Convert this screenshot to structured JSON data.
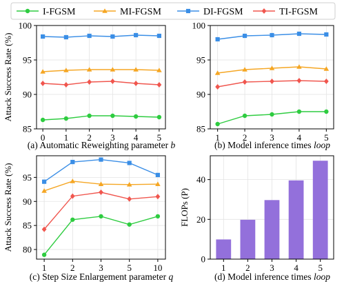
{
  "legend": {
    "placement": "top-center",
    "entries": [
      {
        "label": "I-FGSM",
        "color": "#2ecc40",
        "marker": "circle"
      },
      {
        "label": "MI-FGSM",
        "color": "#f5a623",
        "marker": "triangle"
      },
      {
        "label": "DI-FGSM",
        "color": "#3a8ee6",
        "marker": "square"
      },
      {
        "label": "TI-FGSM",
        "color": "#f0564e",
        "marker": "diamond"
      }
    ]
  },
  "chart_data": [
    {
      "type": "line",
      "caption_text": "(a) Automatic Reweighting parameter ",
      "caption_var": "b",
      "ylabel": "Attack Success Rate (%)",
      "categories": [
        "0",
        "1",
        "2",
        "3",
        "4",
        "5"
      ],
      "ylim": [
        85,
        100
      ],
      "yticks": [
        "85",
        "90",
        "95",
        "100"
      ],
      "grid": true,
      "series": [
        {
          "name": "I-FGSM",
          "values": [
            86.3,
            86.5,
            86.9,
            86.9,
            86.8,
            86.7
          ]
        },
        {
          "name": "MI-FGSM",
          "values": [
            93.3,
            93.5,
            93.6,
            93.6,
            93.6,
            93.5
          ]
        },
        {
          "name": "DI-FGSM",
          "values": [
            98.4,
            98.3,
            98.5,
            98.4,
            98.6,
            98.5
          ]
        },
        {
          "name": "TI-FGSM",
          "values": [
            91.6,
            91.4,
            91.8,
            91.9,
            91.6,
            91.4
          ]
        }
      ]
    },
    {
      "type": "line",
      "caption_text": "(b) Model inference times ",
      "caption_var": "loop",
      "ylabel": "",
      "categories": [
        "1",
        "2",
        "3",
        "4",
        "5"
      ],
      "ylim": [
        85,
        100
      ],
      "yticks": [
        "85",
        "90",
        "95",
        "100"
      ],
      "grid": true,
      "series": [
        {
          "name": "I-FGSM",
          "values": [
            85.7,
            86.9,
            87.1,
            87.5,
            87.5
          ]
        },
        {
          "name": "MI-FGSM",
          "values": [
            93.1,
            93.6,
            93.8,
            94.0,
            93.7
          ]
        },
        {
          "name": "DI-FGSM",
          "values": [
            98.0,
            98.5,
            98.6,
            98.8,
            98.7
          ]
        },
        {
          "name": "TI-FGSM",
          "values": [
            91.1,
            91.8,
            91.9,
            92.0,
            91.9
          ]
        }
      ]
    },
    {
      "type": "line",
      "caption_text": "(c) Step Size Enlargement parameter ",
      "caption_var": "q",
      "ylabel": "Attack Success Rate (%)",
      "categories": [
        "1",
        "2",
        "3",
        "5",
        "10"
      ],
      "ylim": [
        78,
        99.5
      ],
      "yticks": [
        "80",
        "85",
        "90",
        "95"
      ],
      "grid": true,
      "series": [
        {
          "name": "I-FGSM",
          "values": [
            78.9,
            86.2,
            86.9,
            85.2,
            86.9
          ]
        },
        {
          "name": "MI-FGSM",
          "values": [
            92.2,
            94.2,
            93.6,
            93.5,
            93.6
          ]
        },
        {
          "name": "DI-FGSM",
          "values": [
            94.1,
            98.2,
            98.7,
            98.0,
            95.5
          ]
        },
        {
          "name": "TI-FGSM",
          "values": [
            84.2,
            91.1,
            91.9,
            90.5,
            91.0
          ]
        }
      ]
    },
    {
      "type": "bar",
      "caption_text": "(d) Model inference times ",
      "caption_var": "loop",
      "ylabel": "FLOPs (P)",
      "categories": [
        "1",
        "2",
        "3",
        "4",
        "5"
      ],
      "values": [
        9.9,
        19.8,
        29.7,
        39.6,
        49.5
      ],
      "ylim": [
        0,
        52
      ],
      "yticks": [
        "0",
        "20",
        "40"
      ],
      "grid": true,
      "bar_color": "#9370db"
    }
  ]
}
